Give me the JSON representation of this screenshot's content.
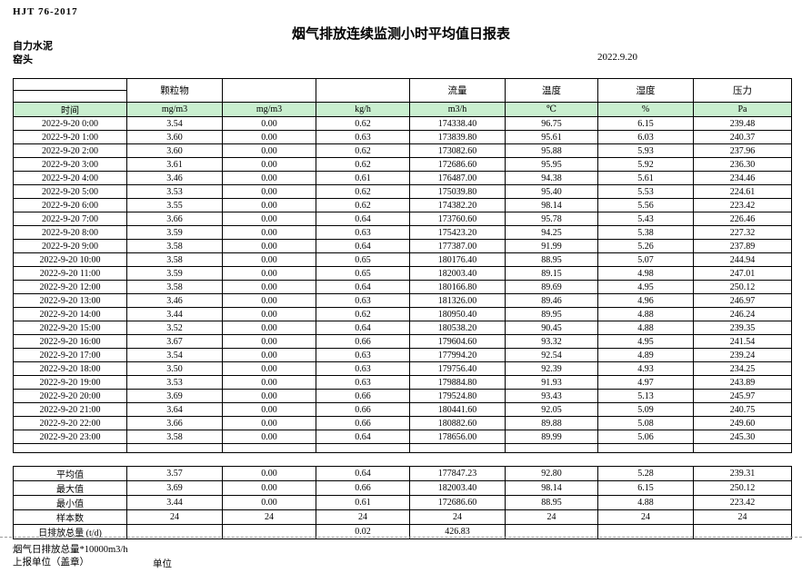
{
  "page": {
    "doc_code": "HJT  76-2017",
    "title": "烟气排放连续监测小时平均值日报表",
    "company": "自力水泥",
    "station": "窑头",
    "date": "2022.9.20"
  },
  "table": {
    "group_headers": [
      "",
      "颗粒物",
      "",
      "",
      "流量",
      "温度",
      "湿度",
      "压力"
    ],
    "unit_row": [
      "时间",
      "mg/m3",
      "mg/m3",
      "kg/h",
      "m3/h",
      "℃",
      "%",
      "Pa"
    ],
    "unit_row_bg": "#c9efcf",
    "rows": [
      [
        "2022-9-20 0:00",
        "3.54",
        "0.00",
        "0.62",
        "174338.40",
        "96.75",
        "6.15",
        "239.48"
      ],
      [
        "2022-9-20 1:00",
        "3.60",
        "0.00",
        "0.63",
        "173839.80",
        "95.61",
        "6.03",
        "240.37"
      ],
      [
        "2022-9-20 2:00",
        "3.60",
        "0.00",
        "0.62",
        "173082.60",
        "95.88",
        "5.93",
        "237.96"
      ],
      [
        "2022-9-20 3:00",
        "3.61",
        "0.00",
        "0.62",
        "172686.60",
        "95.95",
        "5.92",
        "236.30"
      ],
      [
        "2022-9-20 4:00",
        "3.46",
        "0.00",
        "0.61",
        "176487.00",
        "94.38",
        "5.61",
        "234.46"
      ],
      [
        "2022-9-20 5:00",
        "3.53",
        "0.00",
        "0.62",
        "175039.80",
        "95.40",
        "5.53",
        "224.61"
      ],
      [
        "2022-9-20 6:00",
        "3.55",
        "0.00",
        "0.62",
        "174382.20",
        "98.14",
        "5.56",
        "223.42"
      ],
      [
        "2022-9-20 7:00",
        "3.66",
        "0.00",
        "0.64",
        "173760.60",
        "95.78",
        "5.43",
        "226.46"
      ],
      [
        "2022-9-20 8:00",
        "3.59",
        "0.00",
        "0.63",
        "175423.20",
        "94.25",
        "5.38",
        "227.32"
      ],
      [
        "2022-9-20 9:00",
        "3.58",
        "0.00",
        "0.64",
        "177387.00",
        "91.99",
        "5.26",
        "237.89"
      ],
      [
        "2022-9-20 10:00",
        "3.58",
        "0.00",
        "0.65",
        "180176.40",
        "88.95",
        "5.07",
        "244.94"
      ],
      [
        "2022-9-20 11:00",
        "3.59",
        "0.00",
        "0.65",
        "182003.40",
        "89.15",
        "4.98",
        "247.01"
      ],
      [
        "2022-9-20 12:00",
        "3.58",
        "0.00",
        "0.64",
        "180166.80",
        "89.69",
        "4.95",
        "250.12"
      ],
      [
        "2022-9-20 13:00",
        "3.46",
        "0.00",
        "0.63",
        "181326.00",
        "89.46",
        "4.96",
        "246.97"
      ],
      [
        "2022-9-20 14:00",
        "3.44",
        "0.00",
        "0.62",
        "180950.40",
        "89.95",
        "4.88",
        "246.24"
      ],
      [
        "2022-9-20 15:00",
        "3.52",
        "0.00",
        "0.64",
        "180538.20",
        "90.45",
        "4.88",
        "239.35"
      ],
      [
        "2022-9-20 16:00",
        "3.67",
        "0.00",
        "0.66",
        "179604.60",
        "93.32",
        "4.95",
        "241.54"
      ],
      [
        "2022-9-20 17:00",
        "3.54",
        "0.00",
        "0.63",
        "177994.20",
        "92.54",
        "4.89",
        "239.24"
      ],
      [
        "2022-9-20 18:00",
        "3.50",
        "0.00",
        "0.63",
        "179756.40",
        "92.39",
        "4.93",
        "234.25"
      ],
      [
        "2022-9-20 19:00",
        "3.53",
        "0.00",
        "0.63",
        "179884.80",
        "91.93",
        "4.97",
        "243.89"
      ],
      [
        "2022-9-20 20:00",
        "3.69",
        "0.00",
        "0.66",
        "179524.80",
        "93.43",
        "5.13",
        "245.97"
      ],
      [
        "2022-9-20 21:00",
        "3.64",
        "0.00",
        "0.66",
        "180441.60",
        "92.05",
        "5.09",
        "240.75"
      ],
      [
        "2022-9-20 22:00",
        "3.66",
        "0.00",
        "0.66",
        "180882.60",
        "89.88",
        "5.08",
        "249.60"
      ],
      [
        "2022-9-20 23:00",
        "3.58",
        "0.00",
        "0.64",
        "178656.00",
        "89.99",
        "5.06",
        "245.30"
      ]
    ],
    "summary_rows": [
      [
        "平均值",
        "3.57",
        "0.00",
        "0.64",
        "177847.23",
        "92.80",
        "5.28",
        "239.31"
      ],
      [
        "最大值",
        "3.69",
        "0.00",
        "0.66",
        "182003.40",
        "98.14",
        "6.15",
        "250.12"
      ],
      [
        "最小值",
        "3.44",
        "0.00",
        "0.61",
        "172686.60",
        "88.95",
        "4.88",
        "223.42"
      ],
      [
        "样本数",
        "24",
        "24",
        "24",
        "24",
        "24",
        "24",
        "24"
      ],
      [
        "日排放总量 (t/d)",
        "",
        "",
        "0.02",
        "426.83",
        "",
        "",
        ""
      ]
    ]
  },
  "footer": {
    "note": "烟气日排放总量*10000m3/h",
    "report_unit": "上报单位（盖章）",
    "unit_label": "单位"
  }
}
